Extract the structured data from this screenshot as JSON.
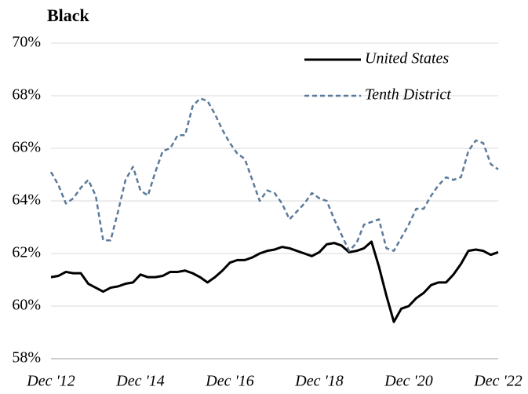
{
  "chart_data": {
    "type": "line",
    "title": "Black",
    "x": [
      "2012-12",
      "2013-02",
      "2013-04",
      "2013-06",
      "2013-08",
      "2013-10",
      "2013-12",
      "2014-02",
      "2014-04",
      "2014-06",
      "2014-08",
      "2014-10",
      "2014-12",
      "2015-02",
      "2015-04",
      "2015-06",
      "2015-08",
      "2015-10",
      "2015-12",
      "2016-02",
      "2016-04",
      "2016-06",
      "2016-08",
      "2016-10",
      "2016-12",
      "2017-02",
      "2017-04",
      "2017-06",
      "2017-08",
      "2017-10",
      "2017-12",
      "2018-02",
      "2018-04",
      "2018-06",
      "2018-08",
      "2018-10",
      "2018-12",
      "2019-02",
      "2019-04",
      "2019-06",
      "2019-08",
      "2019-10",
      "2019-12",
      "2020-02",
      "2020-04",
      "2020-06",
      "2020-08",
      "2020-10",
      "2020-12",
      "2021-02",
      "2021-04",
      "2021-06",
      "2021-08",
      "2021-10",
      "2021-12",
      "2022-02",
      "2022-04",
      "2022-06",
      "2022-08",
      "2022-10",
      "2022-12"
    ],
    "series": [
      {
        "name": "United States",
        "color": "#000000",
        "dash": false,
        "values": [
          61.1,
          61.15,
          61.3,
          61.25,
          61.25,
          60.85,
          60.7,
          60.55,
          60.7,
          60.75,
          60.85,
          60.9,
          61.2,
          61.1,
          61.1,
          61.15,
          61.3,
          61.3,
          61.35,
          61.25,
          61.1,
          60.9,
          61.1,
          61.35,
          61.65,
          61.75,
          61.75,
          61.85,
          62.0,
          62.1,
          62.15,
          62.25,
          62.2,
          62.1,
          62.0,
          61.9,
          62.05,
          62.35,
          62.4,
          62.3,
          62.05,
          62.1,
          62.2,
          62.45,
          61.5,
          60.4,
          59.4,
          59.9,
          60.0,
          60.3,
          60.5,
          60.8,
          60.9,
          60.9,
          61.2,
          61.6,
          62.1,
          62.15,
          62.1,
          61.95,
          62.05
        ]
      },
      {
        "name": "Tenth District",
        "color": "#5b7a9a",
        "dash": true,
        "values": [
          65.1,
          64.6,
          63.9,
          64.1,
          64.5,
          64.8,
          64.2,
          62.5,
          62.5,
          63.6,
          64.8,
          65.3,
          64.4,
          64.2,
          65.1,
          65.9,
          66.0,
          66.5,
          66.5,
          67.6,
          67.9,
          67.8,
          67.3,
          66.7,
          66.2,
          65.8,
          65.6,
          64.8,
          64.0,
          64.4,
          64.3,
          63.9,
          63.3,
          63.6,
          63.9,
          64.3,
          64.1,
          64.0,
          63.3,
          62.7,
          62.1,
          62.4,
          63.1,
          63.2,
          63.3,
          62.2,
          62.1,
          62.6,
          63.1,
          63.7,
          63.7,
          64.2,
          64.6,
          64.9,
          64.8,
          64.9,
          65.9,
          66.3,
          66.2,
          65.4,
          65.2
        ]
      }
    ],
    "ylim": [
      58,
      70
    ],
    "yticks": [
      {
        "value": 58,
        "label": "58%"
      },
      {
        "value": 60,
        "label": "60%"
      },
      {
        "value": 62,
        "label": "62%"
      },
      {
        "value": 64,
        "label": "64%"
      },
      {
        "value": 66,
        "label": "66%"
      },
      {
        "value": 68,
        "label": "68%"
      },
      {
        "value": 70,
        "label": "70%"
      }
    ],
    "xticks": [
      {
        "value": "2012-12",
        "label": "Dec '12"
      },
      {
        "value": "2014-12",
        "label": "Dec '14"
      },
      {
        "value": "2016-12",
        "label": "Dec '16"
      },
      {
        "value": "2018-12",
        "label": "Dec '18"
      },
      {
        "value": "2020-12",
        "label": "Dec '20"
      },
      {
        "value": "2022-12",
        "label": "Dec '22"
      }
    ],
    "grid": true,
    "legend": "upper right"
  }
}
